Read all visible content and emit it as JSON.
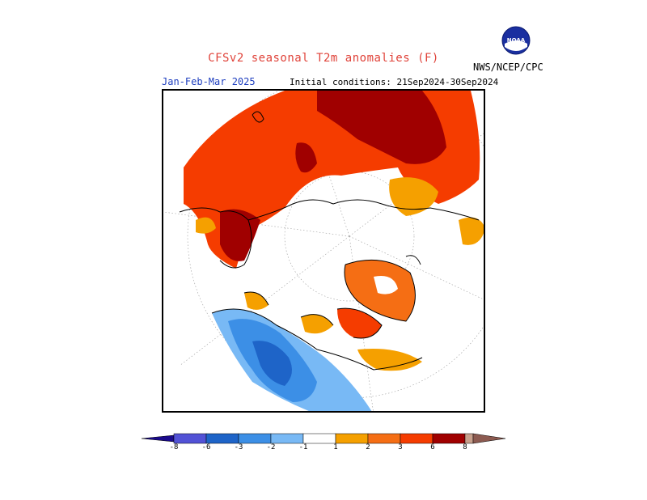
{
  "header": {
    "title": "CFSv2 seasonal T2m anomalies (F)",
    "period": "Jan-Feb-Mar 2025",
    "initial_conditions": "Initial conditions: 21Sep2024-30Sep2024",
    "agency": "NWS/NCEP/CPC",
    "logo_text": "NOAA"
  },
  "legend": {
    "ticks": [
      "-8",
      "-6",
      "-3",
      "-2",
      "-1",
      "1",
      "2",
      "3",
      "6",
      "8"
    ],
    "colors": [
      "#1a0a8c",
      "#5252d6",
      "#1e64c8",
      "#3c8fe6",
      "#78b9f5",
      "#ffffff",
      "#f5a000",
      "#f56e14",
      "#f53c00",
      "#a00000",
      "#c8a08c",
      "#8c5a50"
    ]
  },
  "colors": {
    "title": "#e0433a",
    "period": "#1f3fbf",
    "cold_strong": "#1e64c8",
    "cold_mid": "#3c8fe6",
    "cold_weak": "#78b9f5",
    "warm_weak": "#f5a000",
    "warm_mid": "#f56e14",
    "warm_strong": "#f53c00",
    "warm_extreme": "#a00000"
  }
}
